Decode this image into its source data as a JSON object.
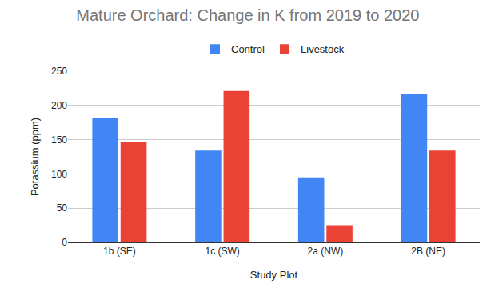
{
  "chart_data": {
    "type": "bar",
    "title": "Mature Orchard: Change in K from 2019 to 2020",
    "x_label": "Study Plot",
    "y_label": "Potassium (ppm)",
    "categories": [
      "1b (SE)",
      "1c (SW)",
      "2a (NW)",
      "2B (NE)"
    ],
    "series": [
      {
        "name": "Control",
        "color": "#4285f4",
        "values": [
          182,
          134,
          95,
          217
        ]
      },
      {
        "name": "Livestock",
        "color": "#ea4335",
        "values": [
          146,
          221,
          25,
          134
        ]
      }
    ],
    "ylim": [
      0,
      250
    ],
    "yticks": [
      0,
      50,
      100,
      150,
      200,
      250
    ],
    "grid": true,
    "legend": "top"
  }
}
